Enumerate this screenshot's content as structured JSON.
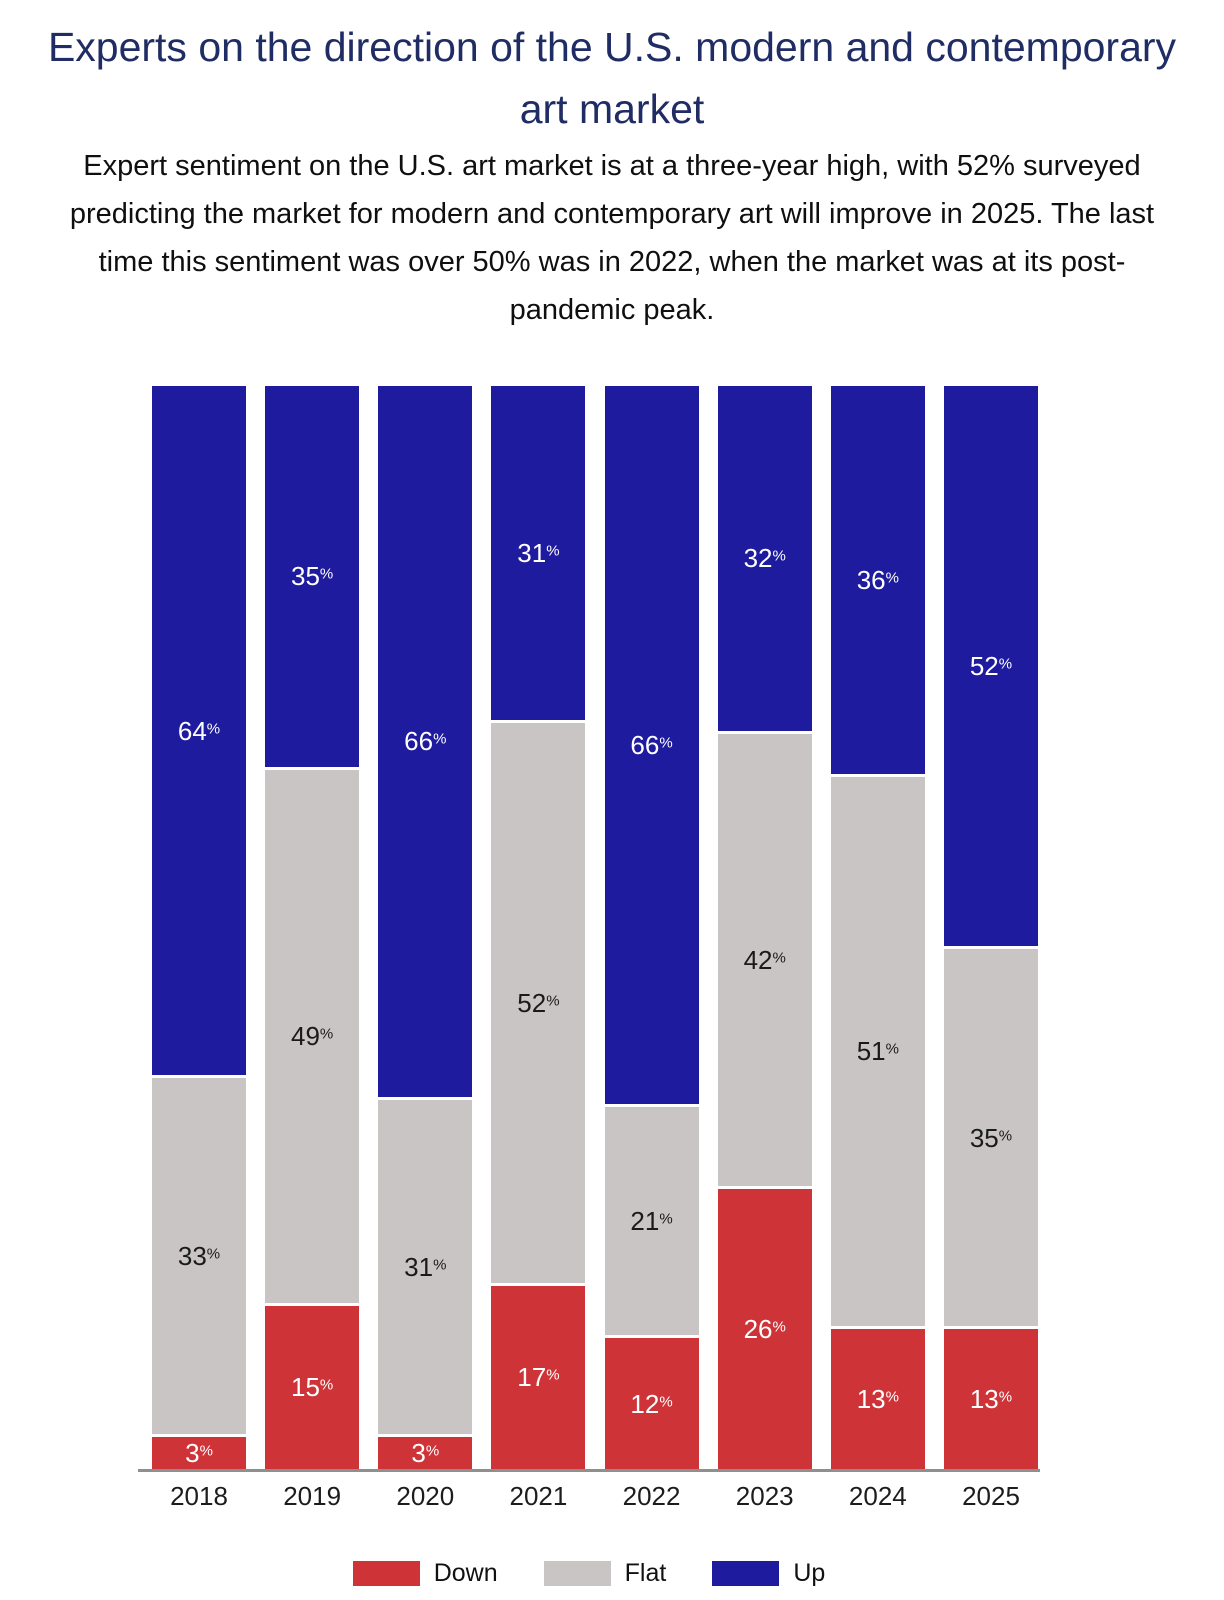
{
  "chart_data": {
    "type": "bar",
    "subtype": "stacked-percent",
    "title": "Experts on the direction of the U.S. modern and contemporary art market",
    "subtitle": "Expert sentiment on the U.S. art market is at a three-year high, with 52% surveyed predicting the market for modern and contemporary art will improve in 2025. The last time this sentiment was over 50% was in 2022, when the market was at its post-pandemic peak.",
    "categories": [
      "2018",
      "2019",
      "2020",
      "2021",
      "2022",
      "2023",
      "2024",
      "2025"
    ],
    "series": [
      {
        "name": "Down",
        "color": "#ce3338",
        "label_color": "#ffffff",
        "values": [
          3,
          15,
          3,
          17,
          12,
          26,
          13,
          13
        ]
      },
      {
        "name": "Flat",
        "color": "#cac5c5",
        "label_color": "#1a1a1a",
        "values": [
          33,
          49,
          31,
          52,
          21,
          42,
          51,
          35
        ]
      },
      {
        "name": "Up",
        "color": "#1e1b9e",
        "label_color": "#ffffff",
        "values": [
          64,
          35,
          66,
          31,
          66,
          32,
          36,
          52
        ]
      }
    ],
    "stack_order_bottom_to_top": [
      "Down",
      "Flat",
      "Up"
    ],
    "value_suffix": "%",
    "legend": {
      "position": "bottom",
      "items": [
        "Down",
        "Flat",
        "Up"
      ]
    },
    "layout": {
      "grid": false,
      "y_axis_visible": false,
      "x_baseline_visible": true
    },
    "colors": {
      "title_text": "#1f2d64",
      "body_text": "#0f0f0f",
      "axis_line": "#8f8f8f"
    }
  }
}
